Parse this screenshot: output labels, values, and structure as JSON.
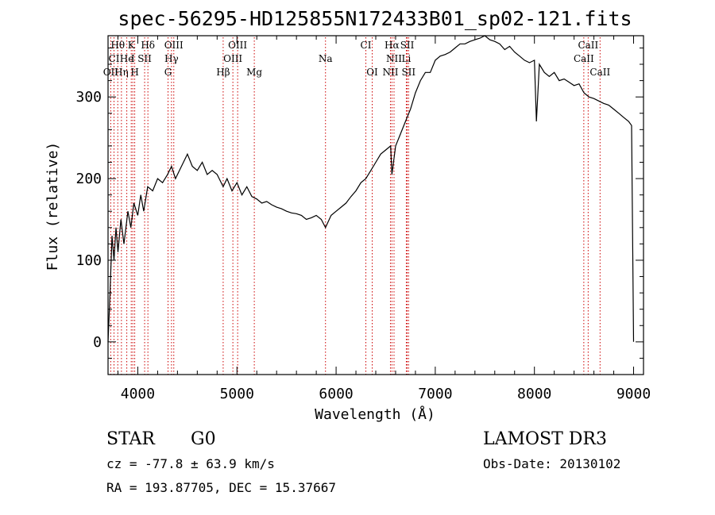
{
  "chart_data": {
    "type": "line",
    "title": "spec-56295-HD125855N172433B01_sp02-121.fits",
    "xlabel": "Wavelength (Å)",
    "ylabel": "Flux (relative)",
    "xlim": [
      3700,
      9100
    ],
    "ylim": [
      -40,
      375
    ],
    "x_ticks": [
      4000,
      5000,
      6000,
      7000,
      8000,
      9000
    ],
    "y_ticks": [
      0,
      100,
      200,
      300
    ],
    "series": [
      {
        "name": "spectrum",
        "x": [
          3700,
          3720,
          3740,
          3760,
          3780,
          3800,
          3830,
          3860,
          3900,
          3930,
          3960,
          4000,
          4030,
          4060,
          4100,
          4150,
          4200,
          4250,
          4300,
          4340,
          4380,
          4420,
          4460,
          4500,
          4550,
          4600,
          4650,
          4700,
          4750,
          4800,
          4861,
          4900,
          4950,
          5000,
          5050,
          5100,
          5150,
          5200,
          5250,
          5300,
          5350,
          5400,
          5450,
          5500,
          5550,
          5600,
          5650,
          5700,
          5750,
          5800,
          5850,
          5893,
          5950,
          6000,
          6050,
          6100,
          6150,
          6200,
          6250,
          6300,
          6350,
          6400,
          6450,
          6500,
          6550,
          6563,
          6600,
          6650,
          6700,
          6750,
          6800,
          6850,
          6900,
          6950,
          7000,
          7050,
          7100,
          7150,
          7200,
          7250,
          7300,
          7350,
          7400,
          7450,
          7500,
          7550,
          7600,
          7650,
          7700,
          7750,
          7800,
          7850,
          7900,
          7950,
          8000,
          8020,
          8050,
          8100,
          8150,
          8200,
          8250,
          8300,
          8350,
          8400,
          8450,
          8500,
          8550,
          8600,
          8650,
          8700,
          8750,
          8800,
          8850,
          8900,
          8950,
          8980,
          9000
        ],
        "y": [
          0,
          60,
          130,
          100,
          140,
          110,
          150,
          120,
          160,
          140,
          170,
          155,
          180,
          160,
          190,
          185,
          200,
          195,
          205,
          215,
          200,
          210,
          220,
          230,
          215,
          210,
          220,
          205,
          210,
          205,
          190,
          200,
          185,
          195,
          180,
          190,
          178,
          175,
          170,
          172,
          168,
          165,
          163,
          160,
          158,
          157,
          155,
          150,
          152,
          155,
          150,
          140,
          155,
          160,
          165,
          170,
          178,
          185,
          195,
          200,
          210,
          220,
          230,
          235,
          240,
          205,
          240,
          255,
          270,
          285,
          305,
          320,
          330,
          330,
          345,
          350,
          352,
          355,
          360,
          365,
          365,
          368,
          370,
          372,
          375,
          370,
          368,
          365,
          358,
          362,
          355,
          350,
          345,
          342,
          345,
          270,
          340,
          330,
          325,
          330,
          320,
          322,
          318,
          314,
          316,
          305,
          300,
          298,
          295,
          292,
          290,
          285,
          280,
          275,
          270,
          265,
          0
        ]
      }
    ],
    "spectral_lines": [
      {
        "label": "Hθ",
        "x": 3798,
        "row": 1
      },
      {
        "label": "K",
        "x": 3934,
        "row": 1
      },
      {
        "label": "Hδ",
        "x": 4102,
        "row": 1
      },
      {
        "label": "OIII",
        "x": 4363,
        "row": 1
      },
      {
        "label": "OIII",
        "x": 5007,
        "row": 1
      },
      {
        "label": "CI",
        "x": 6300,
        "row": 1
      },
      {
        "label": "Hα",
        "x": 6563,
        "row": 1
      },
      {
        "label": "SII",
        "x": 6717,
        "row": 1
      },
      {
        "label": "CaII",
        "x": 8542,
        "row": 1
      },
      {
        "label": "CI",
        "x": 3760,
        "row": 2
      },
      {
        "label": "He",
        "x": 3889,
        "row": 2
      },
      {
        "label": "I",
        "x": 3950,
        "row": 2
      },
      {
        "label": "SII",
        "x": 4069,
        "row": 2
      },
      {
        "label": "Hγ",
        "x": 4340,
        "row": 2
      },
      {
        "label": "OIII",
        "x": 4959,
        "row": 2
      },
      {
        "label": "Na",
        "x": 5893,
        "row": 2
      },
      {
        "label": "NII",
        "x": 6584,
        "row": 2
      },
      {
        "label": "Li",
        "x": 6708,
        "row": 2
      },
      {
        "label": "CaII",
        "x": 8498,
        "row": 2
      },
      {
        "label": "OII",
        "x": 3727,
        "row": 3
      },
      {
        "label": "Hη",
        "x": 3835,
        "row": 3
      },
      {
        "label": "H",
        "x": 3969,
        "row": 3
      },
      {
        "label": "G",
        "x": 4305,
        "row": 3
      },
      {
        "label": "Hβ",
        "x": 4861,
        "row": 3
      },
      {
        "label": "Mg",
        "x": 5175,
        "row": 3
      },
      {
        "label": "OI",
        "x": 6364,
        "row": 3
      },
      {
        "label": "NII",
        "x": 6548,
        "row": 3
      },
      {
        "label": "SII",
        "x": 6731,
        "row": 3
      },
      {
        "label": "CaII",
        "x": 8662,
        "row": 3
      }
    ],
    "line_color": "#cc0000",
    "spectrum_color": "#000000"
  },
  "info": {
    "object_class": "STAR",
    "subclass": "G0",
    "survey": "LAMOST DR3",
    "cz": "cz = -77.8 ± 63.9 km/s",
    "obs_date": "Obs-Date: 20130102",
    "coords": "RA = 193.87705, DEC =  15.37667"
  }
}
